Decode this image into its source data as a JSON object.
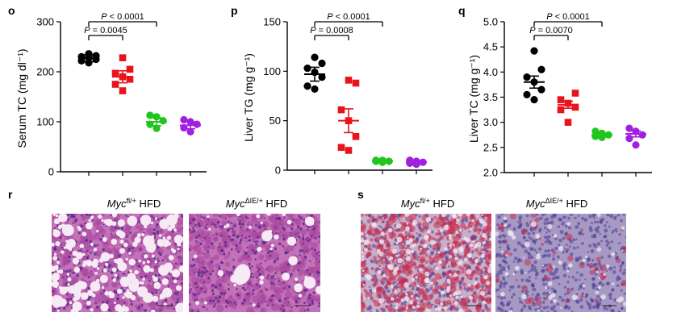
{
  "panels": {
    "o": "o",
    "p": "p",
    "q": "q",
    "r": "r",
    "s": "s"
  },
  "chart_data": [
    {
      "panel": "o",
      "type": "scatter",
      "ylabel": "Serum TC (mg dl⁻¹)",
      "ylim": [
        0,
        300
      ],
      "yticks": [
        0,
        100,
        200,
        300
      ],
      "groups": [
        {
          "color": "#000000",
          "marker": "circle",
          "mean": 227,
          "sem": 7,
          "values": [
            218,
            222,
            225,
            228,
            230,
            232,
            236
          ]
        },
        {
          "color": "#e8141b",
          "marker": "square",
          "mean": 190,
          "sem": 12,
          "values": [
            162,
            175,
            185,
            190,
            197,
            205,
            228
          ]
        },
        {
          "color": "#22c41e",
          "marker": "circle",
          "mean": 100,
          "sem": 8,
          "values": [
            87,
            95,
            102,
            110,
            113
          ]
        },
        {
          "color": "#a020e0",
          "marker": "circle",
          "mean": 93,
          "sem": 7,
          "values": [
            80,
            88,
            95,
            100,
            104
          ]
        }
      ],
      "comparisons": [
        {
          "from": 0,
          "to": 1,
          "p_label": "P",
          "p_value": "= 0.0045"
        },
        {
          "from": 0,
          "to": 2,
          "p_label": "P",
          "p_value": "< 0.0001"
        }
      ]
    },
    {
      "panel": "p",
      "type": "scatter",
      "ylabel": "Liver TG (mg g⁻¹)",
      "ylim": [
        0,
        150
      ],
      "yticks": [
        0,
        50,
        100,
        150
      ],
      "groups": [
        {
          "color": "#000000",
          "marker": "circle",
          "mean": 97,
          "sem": 7,
          "values": [
            82,
            85,
            94,
            99,
            103,
            108,
            114
          ]
        },
        {
          "color": "#e8141b",
          "marker": "square",
          "mean": 50,
          "sem": 12,
          "values": [
            20,
            23,
            34,
            50,
            61,
            88,
            91
          ]
        },
        {
          "color": "#22c41e",
          "marker": "circle",
          "mean": 9,
          "sem": 1,
          "values": [
            8,
            9,
            9,
            10,
            10
          ]
        },
        {
          "color": "#a020e0",
          "marker": "circle",
          "mean": 8,
          "sem": 1,
          "values": [
            6,
            7,
            8,
            9,
            10
          ]
        }
      ],
      "comparisons": [
        {
          "from": 0,
          "to": 1,
          "p_label": "P",
          "p_value": "= 0.0008"
        },
        {
          "from": 0,
          "to": 2,
          "p_label": "P",
          "p_value": "< 0.0001"
        }
      ]
    },
    {
      "panel": "q",
      "type": "scatter",
      "ylabel": "Liver TC (mg g⁻¹)",
      "ylim": [
        2.0,
        5.0
      ],
      "yticks": [
        2.0,
        2.5,
        3.0,
        3.5,
        4.0,
        4.5,
        5.0
      ],
      "groups": [
        {
          "color": "#000000",
          "marker": "circle",
          "mean": 3.8,
          "sem": 0.12,
          "values": [
            3.45,
            3.55,
            3.65,
            3.8,
            3.9,
            4.05,
            4.42
          ]
        },
        {
          "color": "#e8141b",
          "marker": "square",
          "mean": 3.35,
          "sem": 0.07,
          "values": [
            3.0,
            3.25,
            3.3,
            3.38,
            3.45,
            3.58
          ]
        },
        {
          "color": "#22c41e",
          "marker": "circle",
          "mean": 2.75,
          "sem": 0.03,
          "values": [
            2.7,
            2.72,
            2.75,
            2.78,
            2.82
          ]
        },
        {
          "color": "#a020e0",
          "marker": "circle",
          "mean": 2.77,
          "sem": 0.06,
          "values": [
            2.55,
            2.68,
            2.75,
            2.82,
            2.88
          ]
        }
      ],
      "comparisons": [
        {
          "from": 0,
          "to": 1,
          "p_label": "P",
          "p_value": "= 0.0070"
        },
        {
          "from": 0,
          "to": 2,
          "p_label": "P",
          "p_value": "< 0.0001"
        }
      ]
    }
  ],
  "histology": {
    "r": {
      "left": {
        "gene": "Myc",
        "sup": "fl/+",
        "suffix": " HFD",
        "stain": "H&E"
      },
      "right": {
        "gene": "Myc",
        "sup": "ΔIE/+",
        "suffix": " HFD",
        "stain": "H&E"
      }
    },
    "s": {
      "left": {
        "gene": "Myc",
        "sup": "fl/+",
        "suffix": " HFD",
        "stain": "Oil Red O"
      },
      "right": {
        "gene": "Myc",
        "sup": "ΔIE/+",
        "suffix": " HFD",
        "stain": "Oil Red O"
      }
    }
  },
  "colors": {
    "he_bg": "#c472b8",
    "he_cell": "#a8489e",
    "he_nucleus": "#4b2a8a",
    "he_vacuole": "#f6eaf4",
    "oro_bg": "#c8aec8",
    "oro_lipid": "#c83050",
    "oro_nucleus": "#4a3a90",
    "oro_bg2": "#a69ac4"
  }
}
